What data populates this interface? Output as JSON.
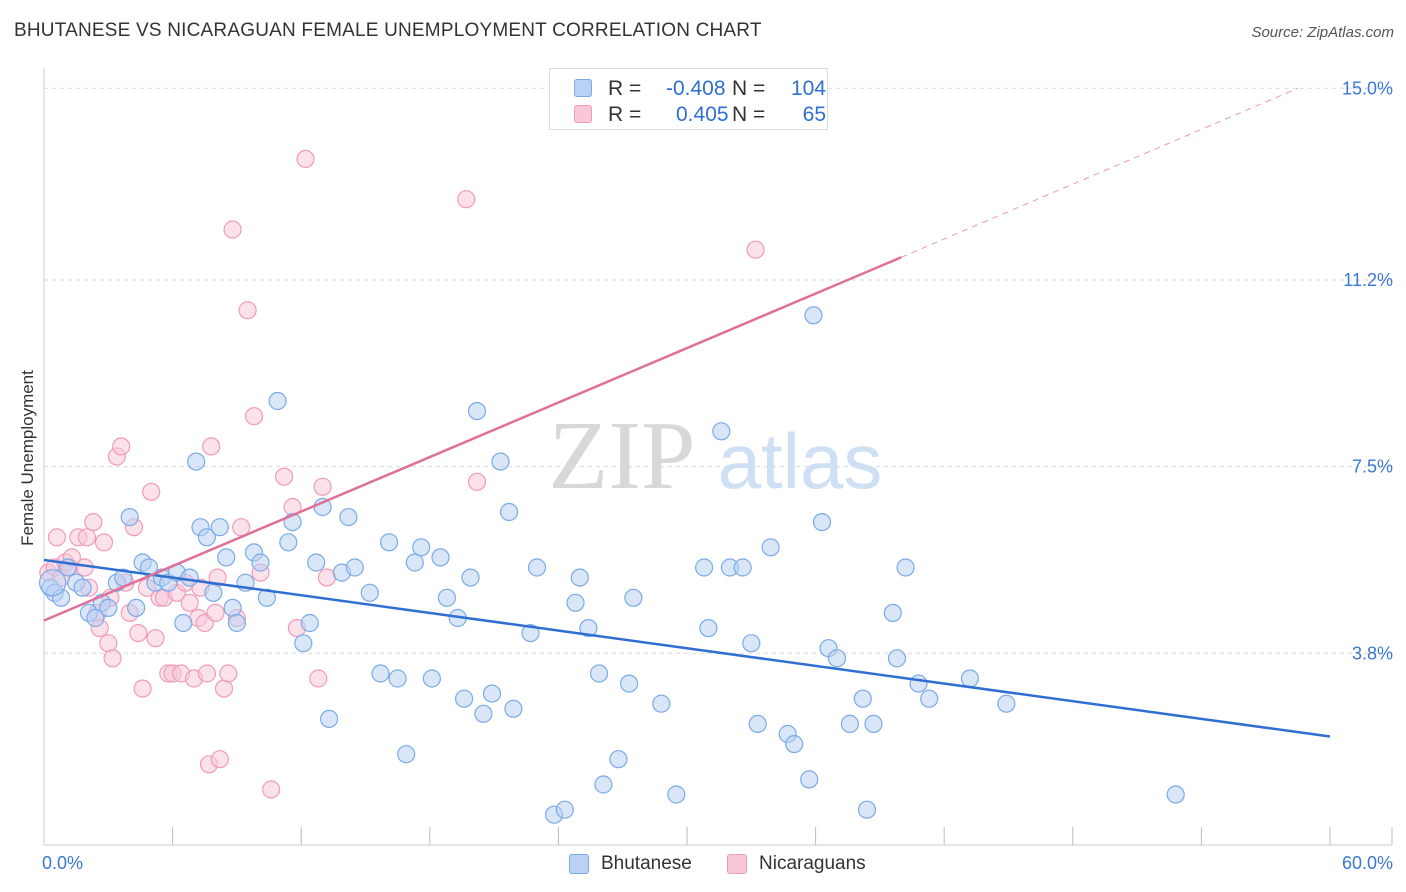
{
  "chart_data": {
    "type": "scatter",
    "title": "BHUTANESE VS NICARAGUAN FEMALE UNEMPLOYMENT CORRELATION CHART",
    "source": "Source: ZipAtlas.com",
    "ylabel": "Female Unemployment",
    "xlim": [
      0,
      60
    ],
    "ylim": [
      0,
      15
    ],
    "y_ticks": [
      {
        "value": 3.8,
        "label": "3.8%"
      },
      {
        "value": 7.5,
        "label": "7.5%"
      },
      {
        "value": 11.2,
        "label": "11.2%"
      },
      {
        "value": 15.0,
        "label": "15.0%"
      }
    ],
    "x_tick_labels": {
      "min": "0.0%",
      "max": "60.0%"
    },
    "watermark": {
      "zip": "ZIP",
      "atlas": "atlas"
    },
    "legend_stats": {
      "r_label": "R =",
      "n_label": "N ="
    },
    "series": [
      {
        "name": "Bhutanese",
        "R": "-0.408",
        "N": "104",
        "color": "#7aaae8",
        "fill": "#b9d1f3",
        "line_color": "#2f6fd1",
        "trend": {
          "x0": 0,
          "y0": 5.65,
          "x1": 60,
          "y1": 2.15
        },
        "points": [
          [
            0.3,
            5.1
          ],
          [
            0.5,
            5.0
          ],
          [
            0.8,
            4.9
          ],
          [
            1.1,
            5.5
          ],
          [
            1.5,
            5.2
          ],
          [
            1.8,
            5.1
          ],
          [
            2.1,
            4.6
          ],
          [
            2.4,
            4.5
          ],
          [
            2.7,
            4.8
          ],
          [
            3.0,
            4.7
          ],
          [
            3.4,
            5.2
          ],
          [
            3.7,
            5.3
          ],
          [
            4.0,
            6.5
          ],
          [
            4.3,
            4.7
          ],
          [
            4.6,
            5.6
          ],
          [
            4.9,
            5.5
          ],
          [
            5.2,
            5.2
          ],
          [
            5.5,
            5.3
          ],
          [
            5.8,
            5.2
          ],
          [
            6.2,
            5.4
          ],
          [
            6.5,
            4.4
          ],
          [
            6.8,
            5.3
          ],
          [
            7.1,
            7.6
          ],
          [
            7.3,
            6.3
          ],
          [
            7.6,
            6.1
          ],
          [
            7.9,
            5.0
          ],
          [
            8.2,
            6.3
          ],
          [
            8.5,
            5.7
          ],
          [
            8.8,
            4.7
          ],
          [
            9.0,
            4.4
          ],
          [
            9.4,
            5.2
          ],
          [
            9.8,
            5.8
          ],
          [
            10.1,
            5.6
          ],
          [
            10.4,
            4.9
          ],
          [
            10.9,
            8.8
          ],
          [
            11.4,
            6.0
          ],
          [
            11.6,
            6.4
          ],
          [
            12.1,
            4.0
          ],
          [
            12.4,
            4.4
          ],
          [
            12.7,
            5.6
          ],
          [
            13.0,
            6.7
          ],
          [
            13.3,
            2.5
          ],
          [
            13.9,
            5.4
          ],
          [
            14.2,
            6.5
          ],
          [
            14.5,
            5.5
          ],
          [
            15.2,
            5.0
          ],
          [
            15.7,
            3.4
          ],
          [
            16.1,
            6.0
          ],
          [
            16.5,
            3.3
          ],
          [
            16.9,
            1.8
          ],
          [
            17.3,
            5.6
          ],
          [
            17.6,
            5.9
          ],
          [
            18.1,
            3.3
          ],
          [
            18.5,
            5.7
          ],
          [
            18.8,
            4.9
          ],
          [
            19.3,
            4.5
          ],
          [
            19.6,
            2.9
          ],
          [
            19.9,
            5.3
          ],
          [
            20.2,
            8.6
          ],
          [
            20.5,
            2.6
          ],
          [
            20.9,
            3.0
          ],
          [
            21.3,
            7.6
          ],
          [
            21.7,
            6.6
          ],
          [
            21.9,
            2.7
          ],
          [
            22.7,
            4.2
          ],
          [
            23.0,
            5.5
          ],
          [
            23.8,
            0.6
          ],
          [
            24.3,
            0.7
          ],
          [
            24.8,
            4.8
          ],
          [
            25.0,
            5.3
          ],
          [
            25.4,
            4.3
          ],
          [
            25.9,
            3.4
          ],
          [
            26.1,
            1.2
          ],
          [
            26.8,
            1.7
          ],
          [
            27.3,
            3.2
          ],
          [
            27.5,
            4.9
          ],
          [
            28.8,
            2.8
          ],
          [
            29.5,
            1.0
          ],
          [
            30.8,
            5.5
          ],
          [
            31.0,
            4.3
          ],
          [
            31.6,
            8.2
          ],
          [
            32.0,
            5.5
          ],
          [
            32.6,
            5.5
          ],
          [
            33.0,
            4.0
          ],
          [
            33.3,
            2.4
          ],
          [
            33.9,
            5.9
          ],
          [
            34.7,
            2.2
          ],
          [
            35.0,
            2.0
          ],
          [
            35.7,
            1.3
          ],
          [
            35.9,
            10.5
          ],
          [
            36.3,
            6.4
          ],
          [
            36.6,
            3.9
          ],
          [
            37.0,
            3.7
          ],
          [
            37.6,
            2.4
          ],
          [
            38.2,
            2.9
          ],
          [
            38.4,
            0.7
          ],
          [
            38.7,
            2.4
          ],
          [
            39.6,
            4.6
          ],
          [
            39.8,
            3.7
          ],
          [
            40.2,
            5.5
          ],
          [
            40.8,
            3.2
          ],
          [
            41.3,
            2.9
          ],
          [
            43.2,
            3.3
          ],
          [
            44.9,
            2.8
          ],
          [
            52.8,
            1.0
          ]
        ]
      },
      {
        "name": "Nicaraguans",
        "R": "0.405",
        "N": "65",
        "color": "#f29bb8",
        "fill": "#f8c8d8",
        "line_color": "#e07097",
        "trend": {
          "x0": 0,
          "y0": 4.45,
          "x1": 40,
          "y1": 11.65
        },
        "trend_ext": {
          "x0": 40,
          "y0": 11.65,
          "x1": 58.5,
          "y1": 15.0
        },
        "points": [
          [
            0.2,
            5.4
          ],
          [
            0.5,
            5.5
          ],
          [
            0.6,
            6.1
          ],
          [
            0.8,
            5.3
          ],
          [
            1.0,
            5.6
          ],
          [
            1.2,
            5.5
          ],
          [
            1.3,
            5.7
          ],
          [
            1.6,
            6.1
          ],
          [
            1.9,
            5.5
          ],
          [
            2.0,
            6.1
          ],
          [
            2.1,
            5.1
          ],
          [
            2.3,
            6.4
          ],
          [
            2.5,
            4.6
          ],
          [
            2.6,
            4.3
          ],
          [
            2.8,
            6.0
          ],
          [
            3.0,
            4.0
          ],
          [
            3.1,
            4.9
          ],
          [
            3.2,
            3.7
          ],
          [
            3.4,
            7.7
          ],
          [
            3.6,
            7.9
          ],
          [
            3.8,
            5.2
          ],
          [
            4.0,
            4.6
          ],
          [
            4.2,
            6.3
          ],
          [
            4.4,
            4.2
          ],
          [
            4.6,
            3.1
          ],
          [
            4.8,
            5.1
          ],
          [
            5.0,
            7.0
          ],
          [
            5.2,
            4.1
          ],
          [
            5.4,
            4.9
          ],
          [
            5.6,
            4.9
          ],
          [
            5.8,
            3.4
          ],
          [
            6.0,
            3.4
          ],
          [
            6.2,
            5.0
          ],
          [
            6.4,
            3.4
          ],
          [
            6.6,
            5.2
          ],
          [
            6.8,
            4.8
          ],
          [
            7.0,
            3.3
          ],
          [
            7.2,
            4.5
          ],
          [
            7.3,
            5.1
          ],
          [
            7.5,
            4.4
          ],
          [
            7.6,
            3.4
          ],
          [
            7.7,
            1.6
          ],
          [
            7.8,
            7.9
          ],
          [
            8.0,
            4.6
          ],
          [
            8.1,
            5.3
          ],
          [
            8.2,
            1.7
          ],
          [
            8.4,
            3.1
          ],
          [
            8.6,
            3.4
          ],
          [
            8.8,
            12.2
          ],
          [
            9.0,
            4.5
          ],
          [
            9.2,
            6.3
          ],
          [
            9.5,
            10.6
          ],
          [
            9.8,
            8.5
          ],
          [
            10.1,
            5.4
          ],
          [
            10.6,
            1.1
          ],
          [
            11.2,
            7.3
          ],
          [
            11.6,
            6.7
          ],
          [
            11.8,
            4.3
          ],
          [
            12.2,
            13.6
          ],
          [
            12.8,
            3.3
          ],
          [
            13.0,
            7.1
          ],
          [
            13.2,
            5.3
          ],
          [
            19.7,
            12.8
          ],
          [
            20.2,
            7.2
          ],
          [
            33.2,
            11.8
          ]
        ]
      }
    ]
  }
}
